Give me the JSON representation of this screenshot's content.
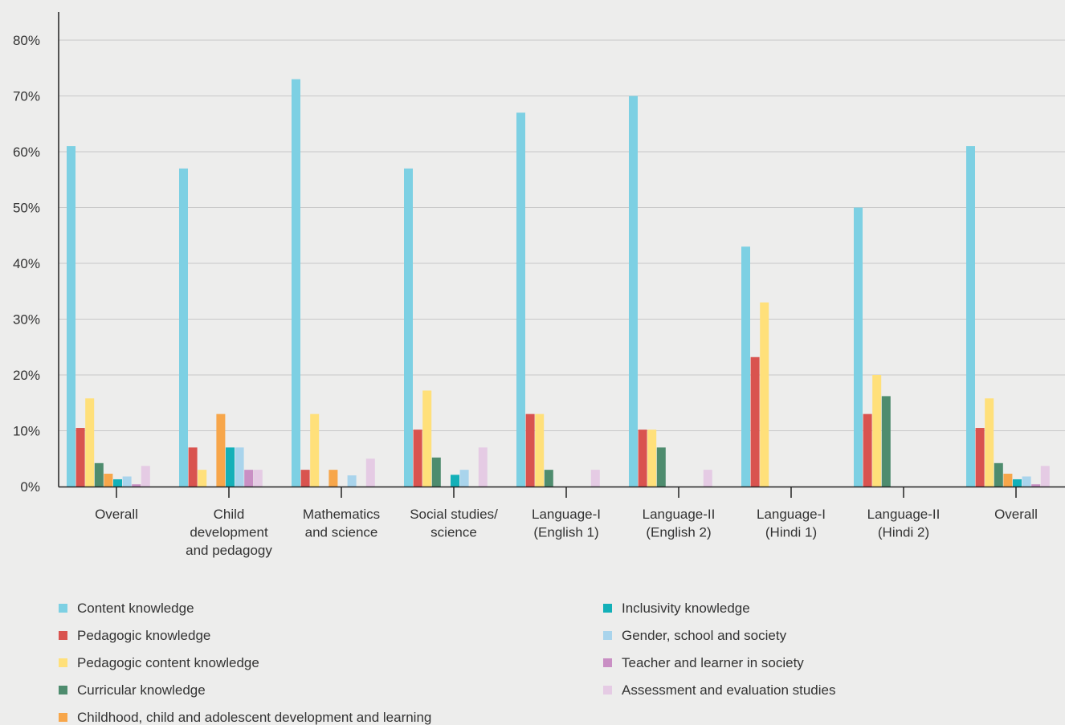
{
  "chart_data": {
    "type": "bar",
    "y_tick_labels": [
      "0%",
      "10%",
      "20%",
      "30%",
      "40%",
      "50%",
      "60%",
      "70%",
      "80%"
    ],
    "ylim": [
      0,
      85
    ],
    "grid": true,
    "legend_position": "bottom",
    "categories": [
      [
        "Overall"
      ],
      [
        "Child",
        "development",
        "and pedagogy"
      ],
      [
        "Mathematics",
        "and science"
      ],
      [
        "Social studies/",
        "science"
      ],
      [
        "Language-I",
        "(English 1)"
      ],
      [
        "Language-II",
        "(English 2)"
      ],
      [
        "Language-I",
        "(Hindi 1)"
      ],
      [
        "Language-II",
        "(Hindi 2)"
      ],
      [
        "Overall"
      ]
    ],
    "series": [
      {
        "name": "Content knowledge",
        "color": "#7dd0e3",
        "values": [
          61,
          57,
          73,
          57,
          67,
          70,
          43,
          50,
          61
        ]
      },
      {
        "name": "Pedagogic knowledge",
        "color": "#d9534f",
        "values": [
          10.5,
          7,
          3,
          10.2,
          13,
          10.2,
          23.2,
          13,
          10.5
        ]
      },
      {
        "name": "Pedagogic content knowledge",
        "color": "#ffe07a",
        "values": [
          15.8,
          3,
          13,
          17.2,
          13,
          10.2,
          33,
          20,
          15.8
        ]
      },
      {
        "name": "Curricular knowledge",
        "color": "#4e8c6e",
        "values": [
          4.2,
          0,
          0,
          5.2,
          3,
          7,
          0,
          16.2,
          4.2
        ]
      },
      {
        "name": "Childhood, child and adolescent development and learning",
        "color": "#f7a64a",
        "values": [
          2.3,
          13,
          3,
          0,
          0,
          0,
          0,
          0,
          2.3
        ]
      },
      {
        "name": "Inclusivity knowledge",
        "color": "#13b0b8",
        "values": [
          1.3,
          7,
          0,
          2.1,
          0,
          0,
          0,
          0,
          1.3
        ]
      },
      {
        "name": "Gender, school and society",
        "color": "#a9d4ec",
        "values": [
          1.8,
          7,
          2,
          3,
          0,
          0,
          0,
          0,
          1.8
        ]
      },
      {
        "name": "Teacher and learner in society",
        "color": "#c98fc4",
        "values": [
          0.4,
          3,
          0,
          0,
          0,
          0,
          0,
          0,
          0.4
        ]
      },
      {
        "name": "Assessment and evaluation studies",
        "color": "#e5cbe4",
        "values": [
          3.7,
          3,
          5,
          7,
          3,
          3,
          0,
          0,
          3.7
        ]
      }
    ],
    "legend_order": [
      0,
      1,
      2,
      3,
      4,
      5,
      6,
      7,
      8
    ],
    "colors": {
      "grid": "#c8c8c8",
      "axis": "#222222",
      "background": "#ededec"
    }
  }
}
